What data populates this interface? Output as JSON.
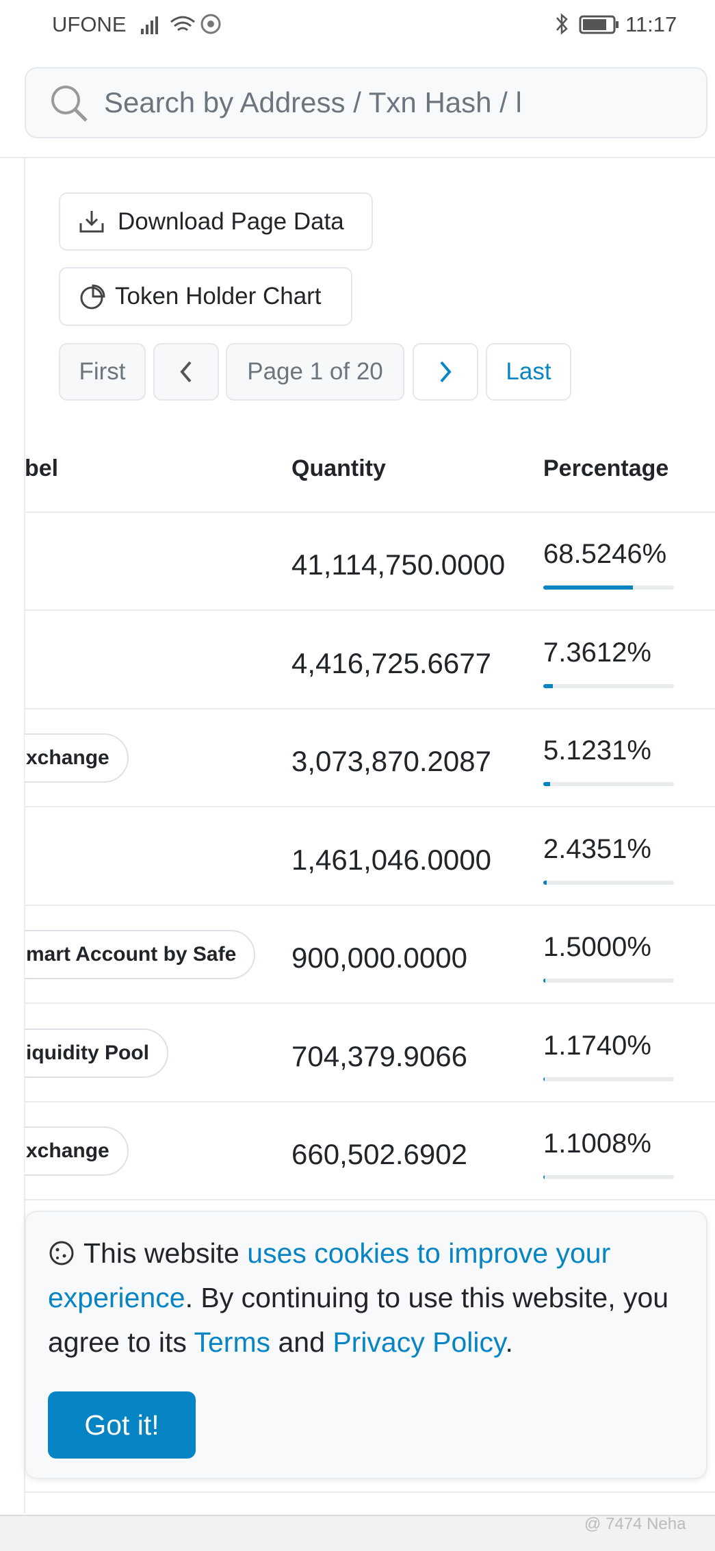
{
  "status_bar": {
    "carrier": "UFONE",
    "time": "11:17"
  },
  "search": {
    "placeholder": "Search by Address / Txn Hash / l"
  },
  "actions": [
    "Download Page Data",
    "Token Holder Chart"
  ],
  "pagination": {
    "first": "First",
    "page": "Page 1 of 20",
    "last": "Last"
  },
  "table": {
    "headers": [
      "bel",
      "Quantity",
      "Percentage"
    ],
    "rows": [
      {
        "quantity": "41,114,750.0000",
        "percentage": {
          "value": 68.5246,
          "label": "68.5246%"
        }
      },
      {
        "quantity": "4,416,725.6677",
        "percentage": {
          "value": 7.3612,
          "label": "7.3612%"
        }
      },
      {
        "label": "xchange",
        "quantity": "3,073,870.2087",
        "percentage": {
          "value": 5.1231,
          "label": "5.1231%"
        }
      },
      {
        "quantity": "1,461,046.0000",
        "percentage": {
          "value": 2.4351,
          "label": "2.4351%"
        }
      },
      {
        "label": "mart Account by Safe",
        "quantity": "900,000.0000",
        "percentage": {
          "value": 1.5,
          "label": "1.5000%"
        }
      },
      {
        "label": "iquidity Pool",
        "quantity": "704,379.9066",
        "percentage": {
          "value": 1.174,
          "label": "1.1740%"
        }
      },
      {
        "label": "xchange",
        "quantity": "660,502.6902",
        "percentage": {
          "value": 1.1008,
          "label": "1.1008%"
        }
      }
    ]
  },
  "cookie": {
    "parts": [
      "This website ",
      "uses cookies to improve your experience",
      ". By continuing to use this website, you agree to its ",
      "Terms",
      " and ",
      "Privacy Policy",
      "."
    ],
    "button": "Got it!"
  },
  "watermark": "@ 7474 Neha"
}
